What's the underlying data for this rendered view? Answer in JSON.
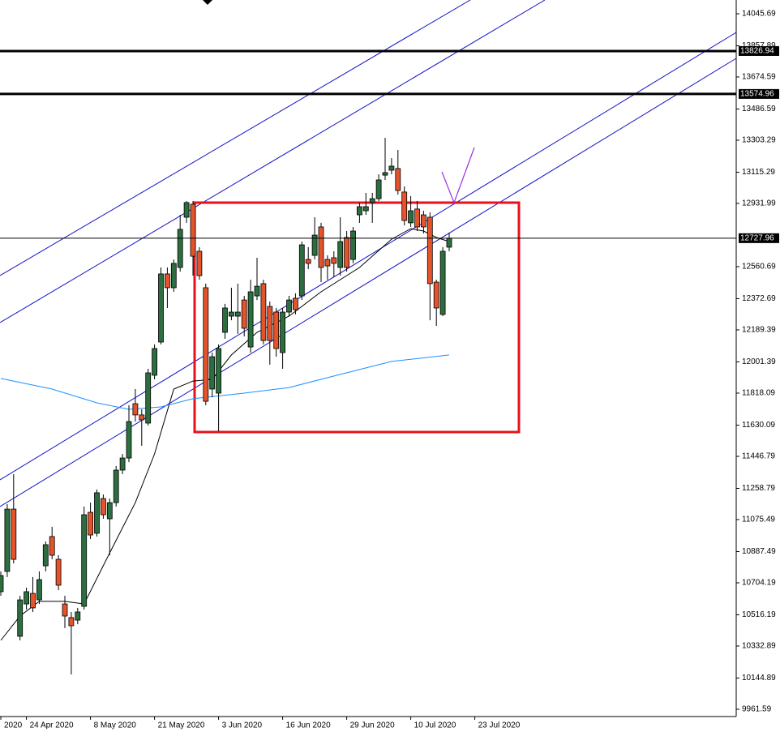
{
  "chart_data": {
    "type": "candlestick",
    "categories": [
      "2020",
      null,
      null,
      null,
      "24 Apr 2020",
      null,
      null,
      null,
      null,
      null,
      null,
      null,
      null,
      null,
      "8 May 2020",
      null,
      null,
      null,
      null,
      null,
      null,
      null,
      null,
      null,
      "21 May 2020",
      null,
      null,
      null,
      null,
      null,
      null,
      null,
      null,
      null,
      "3 Jun 2020",
      null,
      null,
      null,
      null,
      null,
      null,
      null,
      null,
      null,
      "16 Jun 2020",
      null,
      null,
      null,
      null,
      null,
      null,
      null,
      null,
      null,
      "29 Jun 2020",
      null,
      null,
      null,
      null,
      null,
      null,
      null,
      null,
      null,
      "10 Jul 2020",
      null,
      null,
      null,
      null,
      null,
      null,
      null,
      null,
      null,
      "23 Jul 2020"
    ],
    "open": [
      10652,
      10771,
      11137,
      10390,
      10580,
      10642,
      10604,
      10804,
      10976,
      10842,
      10580,
      10500,
      10485,
      10566,
      11118,
      10995,
      11199,
      11080,
      11175,
      11366,
      11437,
      11756,
      11690,
      11642,
      11923,
      12118,
      12518,
      12437,
      12556,
      12851,
      12927,
      12651,
      12437,
      11842,
      11818,
      12175,
      12270,
      12270,
      12365,
      12089,
      12389,
      12461,
      12327,
      12294,
      12056,
      12294,
      12375,
      12389,
      12603,
      12627,
      12794,
      12603,
      12613,
      12556,
      12732,
      12603,
      12865,
      12889,
      12937,
      12960,
      13098,
      13127,
      13137,
      12999,
      12818,
      12899,
      12865,
      12851,
      12470,
      12280,
      12675,
      null,
      null,
      null,
      null
    ],
    "high": [
      10771,
      11166,
      11342,
      10628,
      10676,
      10738,
      10771,
      10947,
      11033,
      10866,
      10628,
      10533,
      10557,
      11152,
      11175,
      11252,
      11223,
      11199,
      11390,
      11461,
      11747,
      11842,
      11723,
      11961,
      12104,
      12556,
      12556,
      12603,
      12865,
      12946,
      12946,
      12675,
      12461,
      12056,
      12104,
      12342,
      12437,
      12461,
      12389,
      12484,
      12613,
      12484,
      12356,
      12318,
      12318,
      12389,
      12404,
      12708,
      12675,
      12851,
      12818,
      12627,
      12651,
      12851,
      12770,
      12794,
      12937,
      12994,
      12994,
      13103,
      13317,
      13198,
      13246,
      13032,
      12975,
      12946,
      12889,
      12880,
      12484,
      12675,
      12761,
      null,
      null,
      null,
      null
    ],
    "low": [
      10628,
      10738,
      10818,
      10366,
      10547,
      10533,
      10580,
      10771,
      10842,
      10661,
      10438,
      10166,
      10461,
      10547,
      10961,
      10976,
      11080,
      10866,
      11152,
      11342,
      11413,
      11651,
      11509,
      11628,
      11899,
      12104,
      12318,
      12413,
      12532,
      12818,
      12508,
      12484,
      11747,
      11794,
      11594,
      12137,
      12246,
      12166,
      12151,
      12056,
      12365,
      12104,
      11985,
      12032,
      11961,
      12270,
      12280,
      12365,
      12546,
      12603,
      12470,
      12484,
      12499,
      12508,
      12532,
      12580,
      12818,
      12865,
      12818,
      12946,
      13070,
      13103,
      12984,
      12803,
      12794,
      12770,
      12756,
      12246,
      12213,
      12270,
      12651,
      null,
      null,
      null,
      null
    ],
    "close": [
      10747,
      11137,
      10842,
      10604,
      10652,
      10557,
      10723,
      10928,
      10866,
      10690,
      10509,
      10452,
      10533,
      11104,
      10985,
      11233,
      11104,
      11175,
      11366,
      11437,
      11651,
      11690,
      11661,
      11937,
      12080,
      12518,
      12437,
      12580,
      12780,
      12937,
      12622,
      12508,
      11770,
      12032,
      12080,
      12318,
      12294,
      12294,
      12199,
      12413,
      12446,
      12127,
      12127,
      12080,
      12294,
      12365,
      12308,
      12689,
      12580,
      12746,
      12556,
      12565,
      12580,
      12708,
      12556,
      12770,
      12913,
      12913,
      12960,
      13070,
      13113,
      13151,
      13008,
      12832,
      12889,
      12794,
      12794,
      12461,
      12318,
      12651,
      12728,
      null,
      null,
      null,
      null
    ],
    "up_color": "#2c6e3f",
    "down_color": "#e4542c",
    "lines": [
      {
        "color": "#000000",
        "x": [
          0,
          3,
          6,
          10,
          13,
          17,
          21,
          24,
          27,
          30,
          33,
          36,
          40,
          45,
          50,
          56,
          61,
          64,
          66,
          68,
          70
        ],
        "values": [
          10366,
          10509,
          10595,
          10595,
          10580,
          10880,
          11175,
          11461,
          11842,
          11889,
          11899,
          12042,
          12175,
          12270,
          12413,
          12556,
          12722,
          12784,
          12770,
          12732,
          12708
        ]
      },
      {
        "color": "#1e90ff",
        "x": [
          0,
          8,
          15,
          20,
          25,
          30,
          38,
          45,
          53,
          61,
          70
        ],
        "values": [
          11904,
          11842,
          11761,
          11723,
          11737,
          11785,
          11818,
          11851,
          11928,
          12004,
          12042
        ]
      }
    ],
    "hlines": [
      13826.94,
      13574.96,
      12727.96
    ],
    "hline_styles": [
      "thick",
      "thick",
      "thin"
    ],
    "ylim": [
      9918.8,
      14126.6
    ],
    "yticks": [
      14045.69,
      13857.89,
      13674.59,
      13486.59,
      13303.29,
      13115.29,
      12931.99,
      12560.69,
      12372.69,
      12189.39,
      12001.39,
      11818.09,
      11630.09,
      11446.79,
      11258.79,
      11075.49,
      10887.49,
      10704.19,
      10516.19,
      10332.89,
      10144.89,
      9961.59
    ],
    "grid": false
  }
}
